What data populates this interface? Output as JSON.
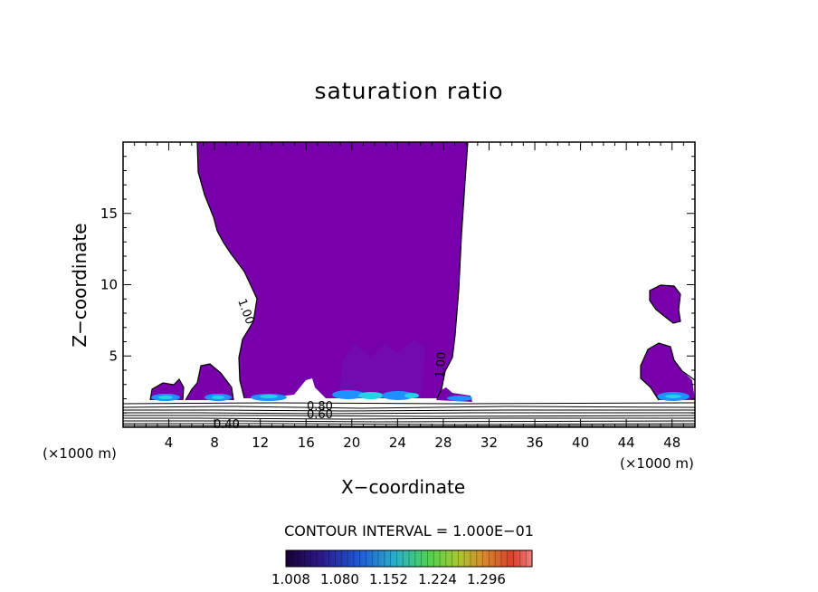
{
  "chart_data": {
    "type": "contour",
    "title": "saturation ratio",
    "xlabel": "X−coordinate",
    "ylabel": "Z−coordinate",
    "x_unit": "(×1000 m)",
    "y_unit": "(×1000 m)",
    "xlim": [
      0,
      50
    ],
    "ylim": [
      0,
      20
    ],
    "xticks": [
      "4",
      "8",
      "12",
      "16",
      "20",
      "24",
      "28",
      "32",
      "36",
      "40",
      "44",
      "48"
    ],
    "yticks": [
      "5",
      "10",
      "15"
    ],
    "contour_interval": "CONTOUR INTERVAL = 1.000E−01",
    "contour_labels": [
      "1.00",
      "1.00",
      "0.80",
      "0.60",
      "0.40"
    ],
    "colorbar": {
      "ticks": [
        "1.008",
        "1.080",
        "1.152",
        "1.224",
        "1.296"
      ],
      "colors": [
        "#1a0033",
        "#2b1b8e",
        "#1e5bd6",
        "#2ab3c9",
        "#4fd24f",
        "#a8c830",
        "#d98a2b",
        "#d9402b",
        "#f08080"
      ]
    },
    "fill_color": "#7700aa",
    "colors": {
      "main_fill": "#7700aa",
      "core": "#6a1fb5",
      "ice": "#1e90ff",
      "cyan": "#26d3e6"
    }
  }
}
